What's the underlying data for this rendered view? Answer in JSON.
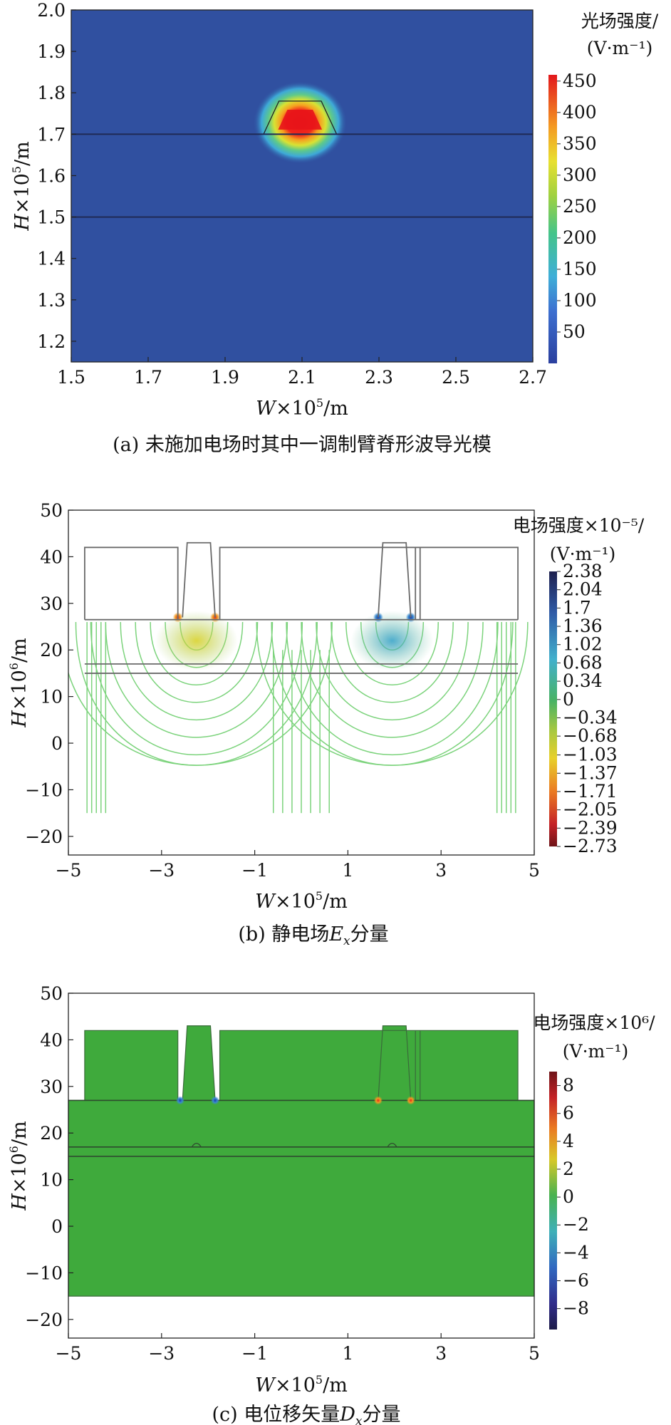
{
  "chart_data": [
    {
      "type": "heatmap",
      "caption": "(a) 未施加电场时其中一调制臂脊形波导光模",
      "xlabel_var": "W",
      "xlabel_rest": "×10",
      "xlabel_exp": "5",
      "xlabel_unit": "/m",
      "ylabel_var": "H",
      "ylabel_rest": "×10",
      "ylabel_exp": "5",
      "ylabel_unit": "/m",
      "xlim": [
        1.5,
        2.7
      ],
      "ylim": [
        1.15,
        2.0
      ],
      "xticks": [
        "1.5",
        "1.7",
        "1.9",
        "2.1",
        "2.3",
        "2.5",
        "2.7"
      ],
      "yticks": [
        "1.2",
        "1.3",
        "1.4",
        "1.5",
        "1.6",
        "1.7",
        "1.8",
        "1.9",
        "2.0"
      ],
      "colorbar_title": "光场强度/",
      "colorbar_unit": "(V·m⁻¹)",
      "colorbar_ticks": [
        "50",
        "100",
        "150",
        "200",
        "250",
        "300",
        "350",
        "400",
        "450"
      ],
      "colorbar_range": [
        0,
        460
      ],
      "background_color": "#3050a0",
      "hotspot": {
        "x": 2.095,
        "y": 1.728,
        "peak": 450
      },
      "boundaries_y": [
        1.7,
        1.5
      ],
      "ridge": {
        "bottom_y": 1.7,
        "top_y": 1.78,
        "bottom_x": [
          2.0,
          2.19
        ],
        "top_x": [
          2.04,
          2.15
        ]
      }
    },
    {
      "type": "contour",
      "caption_a": "(b) 静电场",
      "caption_var": "E",
      "caption_sub": "x",
      "caption_b": "分量",
      "xlabel_var": "W",
      "xlabel_rest": "×10",
      "xlabel_exp": "5",
      "xlabel_unit": "/m",
      "ylabel_var": "H",
      "ylabel_rest": "×10",
      "ylabel_exp": "6",
      "ylabel_unit": "/m",
      "xlim": [
        -5,
        5
      ],
      "ylim": [
        -24,
        50
      ],
      "xticks": [
        "−5",
        "−3",
        "−1",
        "1",
        "3",
        "5"
      ],
      "yticks": [
        "50",
        "40",
        "30",
        "20",
        "10",
        "0",
        "−10",
        "−20"
      ],
      "colorbar_title": "电场强度×10⁻⁵/",
      "colorbar_unit": "(V·m⁻¹)",
      "colorbar_ticks": [
        "2.38",
        "2.04",
        "1.7",
        "1.36",
        "1.02",
        "0.68",
        "0.34",
        "0",
        "−0.34",
        "−0.68",
        "−1.03",
        "−1.37",
        "−1.71",
        "−2.05",
        "−2.39",
        "−2.73"
      ],
      "colorbar_range": [
        -2.73,
        2.38
      ]
    },
    {
      "type": "heatmap",
      "caption_a": "(c) 电位移矢量",
      "caption_var": "D",
      "caption_sub": "x",
      "caption_b": "分量",
      "xlabel_var": "W",
      "xlabel_rest": "×10",
      "xlabel_exp": "5",
      "xlabel_unit": "/m",
      "ylabel_var": "H",
      "ylabel_rest": "×10",
      "ylabel_exp": "6",
      "ylabel_unit": "/m",
      "xlim": [
        -5,
        5
      ],
      "ylim": [
        -24,
        50
      ],
      "xticks": [
        "−5",
        "−3",
        "−1",
        "1",
        "3",
        "5"
      ],
      "yticks": [
        "50",
        "40",
        "30",
        "20",
        "10",
        "0",
        "−10",
        "−20"
      ],
      "colorbar_title": "电场强度×10⁶/",
      "colorbar_unit": "(V·m⁻¹)",
      "colorbar_ticks": [
        "8",
        "6",
        "4",
        "2",
        "0",
        "−2",
        "−4",
        "−6",
        "−8"
      ],
      "colorbar_range": [
        -9.5,
        9
      ],
      "background_color": "#3faa3c"
    }
  ]
}
